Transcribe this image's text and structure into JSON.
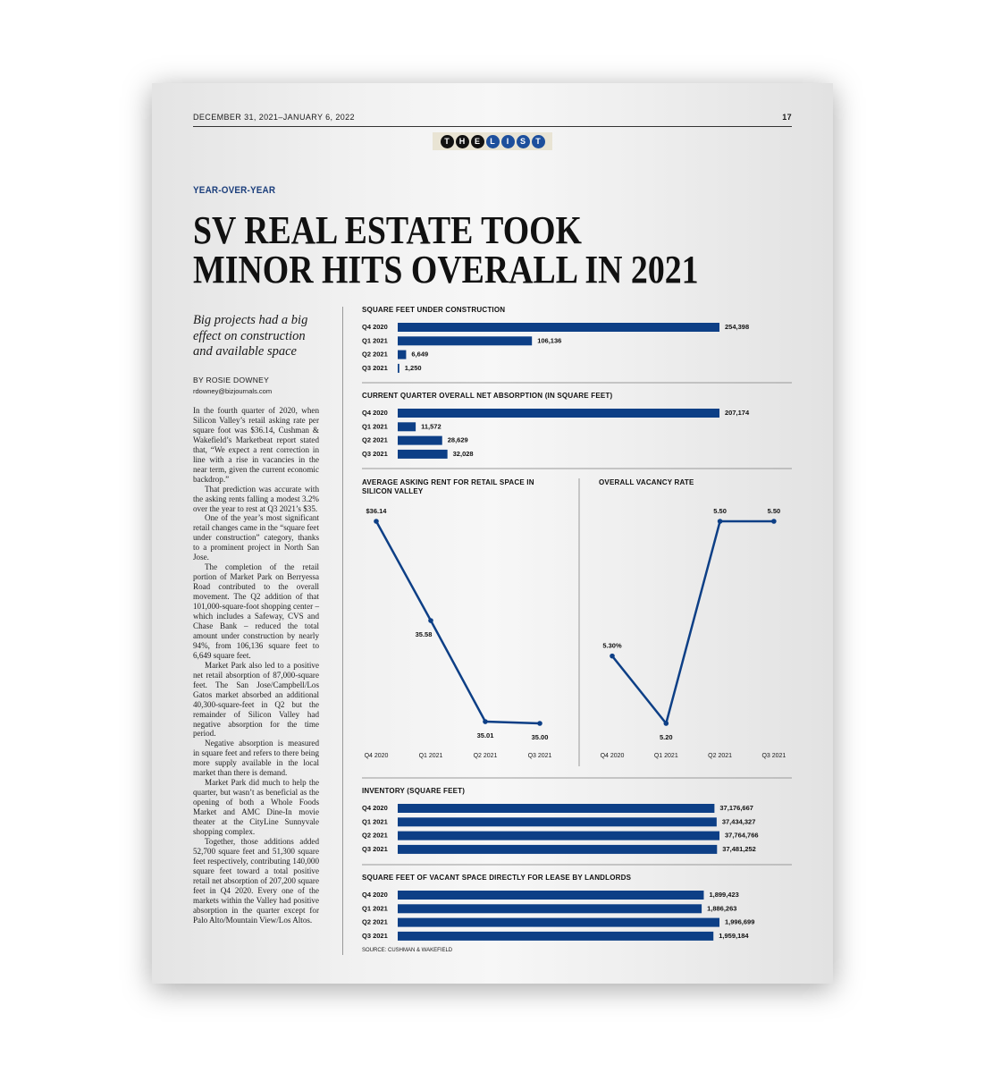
{
  "header": {
    "date": "DECEMBER 31, 2021–JANUARY 6, 2022",
    "page": "17",
    "logo": [
      "T",
      "H",
      "E",
      "L",
      "I",
      "S",
      "T"
    ]
  },
  "kicker": "YEAR-OVER-YEAR",
  "title": [
    "SV REAL ESTATE TOOK",
    "MINOR HITS OVERALL IN 2021"
  ],
  "article": {
    "deck": "Big projects had a big effect on construction and available space",
    "byline": "BY ROSIE DOWNEY",
    "email": "rdowney@bizjournals.com",
    "paragraphs": [
      "In the fourth quarter of 2020, when Silicon Valley’s retail asking rate per square foot was $36.14, Cushman & Wakefield’s Marketbeat report stated that, “We expect a rent correction in line with a rise in vacancies in the near term, given the current economic backdrop.”",
      "That prediction was accurate with the asking rents falling a modest 3.2% over the year to rest at Q3 2021’s $35.",
      "One of the year’s most significant retail changes came in the “square feet under construction” category, thanks to a prominent project in North San Jose.",
      "The completion of the retail portion of Market Park on Berryessa Road contributed to the overall movement. The Q2 addition of that 101,000-square-foot shopping center – which includes a Safeway, CVS and Chase Bank – reduced the total amount under construction by nearly 94%, from 106,136 square feet to 6,649 square feet.",
      "Market Park also led to a positive net retail absorption of 87,000-square feet. The San Jose/Campbell/Los Gatos market absorbed an additional 40,300-square-feet in Q2 but the remainder of Silicon Valley had negative absorption for the time period.",
      "Negative absorption is measured in square feet and refers to there being more supply available in the local market than there is demand.",
      "Market Park did much to help the quarter, but wasn’t as beneficial as the opening of both a Whole Foods Market and AMC Dine-In movie theater at the CityLine Sunnyvale shopping complex.",
      "Together, those additions added 52,700 square feet and 51,300 square feet respectively, contributing 140,000 square feet toward a total positive retail net absorption of 207,200 square feet in Q4 2020. Every one of the markets within the Valley had positive absorption in the quarter except for Palo Alto/Mountain View/Los Altos."
    ]
  },
  "chart_data": [
    {
      "type": "barh",
      "title": "SQUARE FEET UNDER CONSTRUCTION",
      "color": "#0d3f86",
      "categories": [
        "Q4 2020",
        "Q1 2021",
        "Q2 2021",
        "Q3 2021"
      ],
      "values": [
        254398,
        106136,
        6649,
        1250
      ],
      "value_labels": [
        "254,398",
        "106,136",
        "6,649",
        "1,250"
      ]
    },
    {
      "type": "barh",
      "title": "CURRENT QUARTER OVERALL NET ABSORPTION (IN SQUARE FEET)",
      "color": "#0d3f86",
      "categories": [
        "Q4 2020",
        "Q1 2021",
        "Q2 2021",
        "Q3 2021"
      ],
      "values": [
        207174,
        11572,
        28629,
        32028
      ],
      "value_labels": [
        "207,174",
        "11,572",
        "28,629",
        "32,028"
      ]
    },
    {
      "type": "line",
      "title": "AVERAGE ASKING RENT FOR RETAIL SPACE IN SILICON VALLEY",
      "color": "#0d3f86",
      "categories": [
        "Q4 2020",
        "Q1 2021",
        "Q2 2021",
        "Q3 2021"
      ],
      "values": [
        36.14,
        35.58,
        35.01,
        35.0
      ],
      "value_labels": [
        "$36.14",
        "35.58",
        "35.01",
        "35.00"
      ]
    },
    {
      "type": "line",
      "title": "OVERALL VACANCY RATE",
      "color": "#0d3f86",
      "categories": [
        "Q4 2020",
        "Q1 2021",
        "Q2 2021",
        "Q3 2021"
      ],
      "values": [
        5.3,
        5.2,
        5.5,
        5.5
      ],
      "value_labels": [
        "5.30%",
        "5.20",
        "5.50",
        "5.50"
      ]
    },
    {
      "type": "barh",
      "title": "INVENTORY (SQUARE FEET)",
      "color": "#0d3f86",
      "categories": [
        "Q4 2020",
        "Q1 2021",
        "Q2 2021",
        "Q3 2021"
      ],
      "values": [
        37176667,
        37434327,
        37764766,
        37481252
      ],
      "value_labels": [
        "37,176,667",
        "37,434,327",
        "37,764,766",
        "37,481,252"
      ]
    },
    {
      "type": "barh",
      "title": "SQUARE FEET OF VACANT SPACE DIRECTLY FOR LEASE BY LANDLORDS",
      "color": "#0d3f86",
      "categories": [
        "Q4 2020",
        "Q1 2021",
        "Q2 2021",
        "Q3 2021"
      ],
      "values": [
        1899423,
        1886263,
        1996699,
        1959184
      ],
      "value_labels": [
        "1,899,423",
        "1,886,263",
        "1,996,699",
        "1,959,184"
      ]
    }
  ],
  "source": "SOURCE: CUSHMAN & WAKEFIELD"
}
